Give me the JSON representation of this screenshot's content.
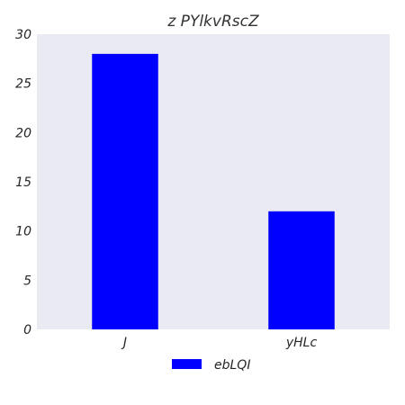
{
  "chart_data": {
    "type": "bar",
    "title": "z PYlkvRscZ",
    "xlabel": "",
    "ylabel": "",
    "categories": [
      "J",
      "yHLc"
    ],
    "series": [
      {
        "name": "ebLQI",
        "values": [
          28,
          12
        ],
        "color": "#0000ff"
      }
    ],
    "ylim": [
      0,
      30
    ],
    "yticks": [
      0,
      5,
      10,
      15,
      20,
      25,
      30
    ],
    "grid": false,
    "legend": "bottom-center",
    "background_color": "#eaeaf2"
  }
}
